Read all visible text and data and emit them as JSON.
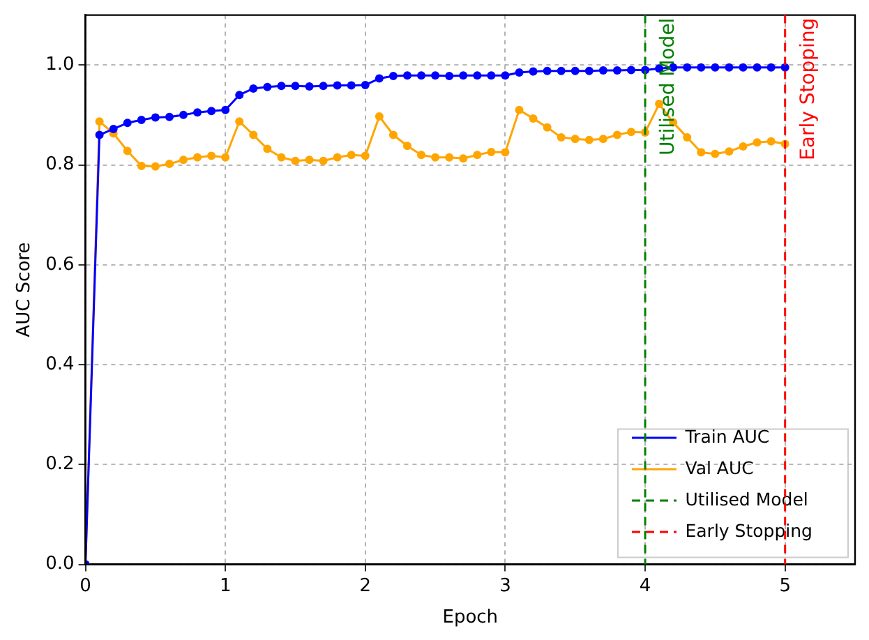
{
  "chart_data": {
    "type": "line",
    "xlabel": "Epoch",
    "ylabel": "AUC Score",
    "x": [
      0,
      0.1,
      0.2,
      0.3,
      0.4,
      0.5,
      0.6,
      0.7,
      0.8,
      0.9,
      1.0,
      1.1,
      1.2,
      1.3,
      1.4,
      1.5,
      1.6,
      1.7,
      1.8,
      1.9,
      2.0,
      2.1,
      2.2,
      2.3,
      2.4,
      2.5,
      2.6,
      2.7,
      2.8,
      2.9,
      3.0,
      3.1,
      3.2,
      3.3,
      3.4,
      3.5,
      3.6,
      3.7,
      3.8,
      3.9,
      4.0,
      4.1,
      4.2,
      4.3,
      4.4,
      4.5,
      4.6,
      4.7,
      4.8,
      4.9,
      5.0
    ],
    "series": [
      {
        "name": "Train AUC",
        "color": "#0000ff",
        "values": [
          0,
          0.86,
          0.872,
          0.884,
          0.89,
          0.895,
          0.896,
          0.9,
          0.905,
          0.908,
          0.91,
          0.94,
          0.953,
          0.956,
          0.958,
          0.958,
          0.957,
          0.958,
          0.959,
          0.959,
          0.96,
          0.973,
          0.978,
          0.979,
          0.979,
          0.979,
          0.978,
          0.979,
          0.979,
          0.979,
          0.979,
          0.985,
          0.987,
          0.988,
          0.988,
          0.988,
          0.988,
          0.989,
          0.989,
          0.99,
          0.99,
          0.993,
          0.995,
          0.995,
          0.995,
          0.995,
          0.995,
          0.995,
          0.995,
          0.995,
          0.995
        ]
      },
      {
        "name": "Val AUC",
        "color": "#ffa500",
        "values": [
          0,
          0.887,
          0.863,
          0.828,
          0.798,
          0.797,
          0.802,
          0.81,
          0.815,
          0.818,
          0.815,
          0.887,
          0.86,
          0.832,
          0.815,
          0.808,
          0.81,
          0.808,
          0.815,
          0.82,
          0.818,
          0.897,
          0.86,
          0.838,
          0.82,
          0.815,
          0.815,
          0.813,
          0.82,
          0.826,
          0.825,
          0.91,
          0.893,
          0.875,
          0.855,
          0.852,
          0.85,
          0.852,
          0.86,
          0.866,
          0.865,
          0.922,
          0.885,
          0.855,
          0.825,
          0.822,
          0.827,
          0.837,
          0.845,
          0.847,
          0.842
        ]
      }
    ],
    "xlim": [
      0,
      5.5
    ],
    "xticks": [
      0,
      1,
      2,
      3,
      4,
      5
    ],
    "ylim": [
      0,
      1.1
    ],
    "yticks": [
      {
        "value": 0,
        "label": "0.0"
      },
      0.2,
      0.4,
      0.6,
      0.8,
      {
        "value": 1,
        "label": "1.0"
      }
    ],
    "ref_lines": [
      {
        "axis": "x",
        "value": 4,
        "label": "Utilised Model",
        "color": "#008000",
        "line_style": "dashed"
      },
      {
        "axis": "x",
        "value": 5,
        "label": "Early Stopping",
        "color": "#ff0000",
        "line_style": "dashed"
      }
    ],
    "grid": true,
    "legend": "bottom right",
    "marker": "circle",
    "line_style": "solid"
  }
}
